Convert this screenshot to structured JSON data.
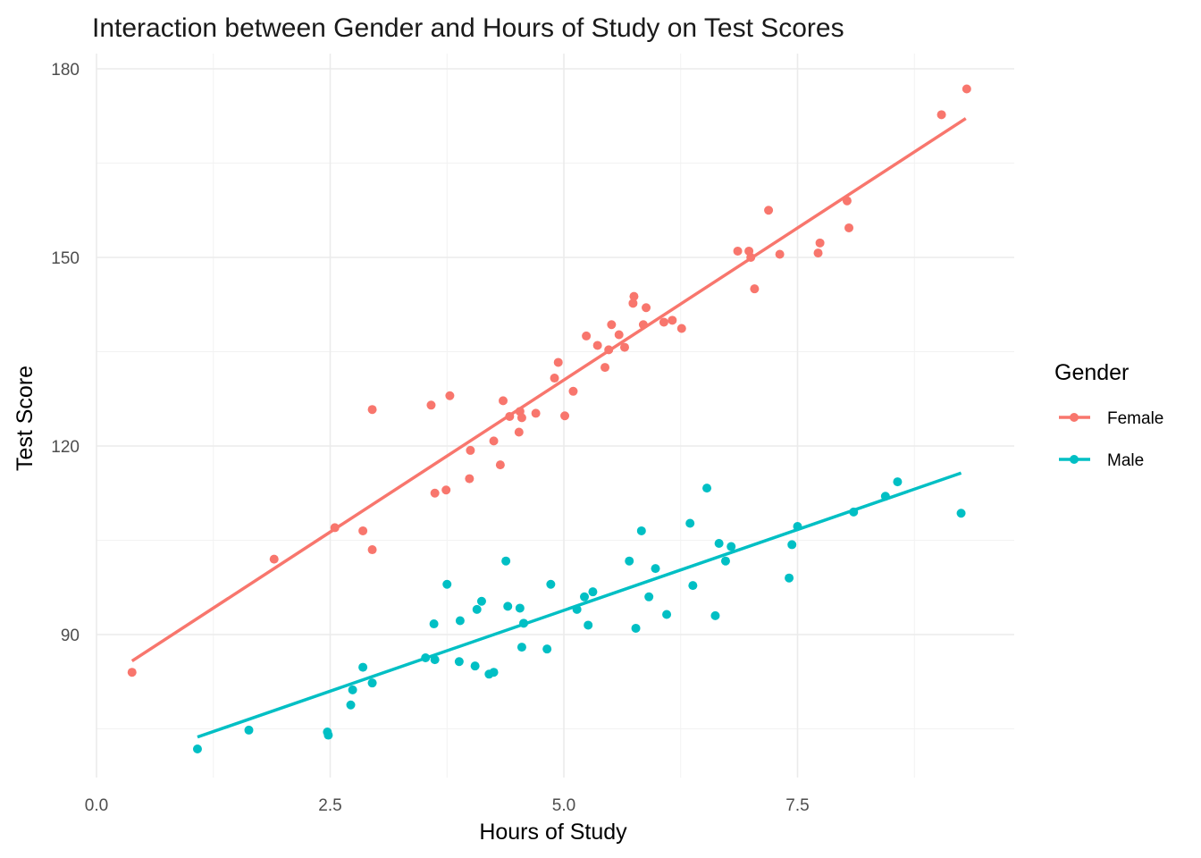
{
  "chart_data": {
    "type": "scatter",
    "title": "Interaction between Gender and Hours of Study on Test Scores",
    "xlabel": "Hours of Study",
    "ylabel": "Test Score",
    "xlim": [
      0,
      9.4
    ],
    "ylim": [
      67,
      182
    ],
    "x_ticks": [
      0,
      2.5,
      5,
      7.5
    ],
    "x_tick_labels": [
      "0.0",
      "2.5",
      "5.0",
      "7.5"
    ],
    "y_ticks": [
      90,
      120,
      150,
      180
    ],
    "y_tick_labels": [
      "90",
      "120",
      "150",
      "180"
    ],
    "grid": true,
    "legend": {
      "title": "Gender",
      "position": "right"
    },
    "series": [
      {
        "name": "Female",
        "color": "#F8766D",
        "fit": {
          "x": [
            0.38,
            9.3
          ],
          "y": [
            85.8,
            172.1
          ]
        },
        "points": [
          [
            0.38,
            84
          ],
          [
            1.9,
            102
          ],
          [
            2.55,
            107
          ],
          [
            2.85,
            106.5
          ],
          [
            2.95,
            103.5
          ],
          [
            2.95,
            125.8
          ],
          [
            3.58,
            126.5
          ],
          [
            3.62,
            112.5
          ],
          [
            3.74,
            113
          ],
          [
            3.78,
            128
          ],
          [
            3.99,
            114.8
          ],
          [
            4.0,
            119.3
          ],
          [
            4.25,
            120.8
          ],
          [
            4.32,
            117
          ],
          [
            4.35,
            127.2
          ],
          [
            4.42,
            124.7
          ],
          [
            4.52,
            122.2
          ],
          [
            4.53,
            125.5
          ],
          [
            4.55,
            124.5
          ],
          [
            4.7,
            125.2
          ],
          [
            4.9,
            130.8
          ],
          [
            4.94,
            133.3
          ],
          [
            5.01,
            124.8
          ],
          [
            5.1,
            128.7
          ],
          [
            5.24,
            137.5
          ],
          [
            5.36,
            136
          ],
          [
            5.44,
            132.5
          ],
          [
            5.48,
            135.3
          ],
          [
            5.51,
            139.3
          ],
          [
            5.59,
            137.7
          ],
          [
            5.65,
            135.7
          ],
          [
            5.74,
            142.7
          ],
          [
            5.75,
            143.8
          ],
          [
            5.85,
            139.3
          ],
          [
            5.88,
            142
          ],
          [
            6.07,
            139.7
          ],
          [
            6.16,
            140
          ],
          [
            6.26,
            138.7
          ],
          [
            6.86,
            151
          ],
          [
            6.98,
            151
          ],
          [
            7.0,
            150
          ],
          [
            7.04,
            145
          ],
          [
            7.19,
            157.5
          ],
          [
            7.31,
            150.5
          ],
          [
            7.72,
            150.7
          ],
          [
            7.74,
            152.3
          ],
          [
            8.03,
            159
          ],
          [
            8.05,
            154.7
          ],
          [
            9.04,
            172.7
          ],
          [
            9.31,
            176.8
          ]
        ]
      },
      {
        "name": "Male",
        "color": "#00BFC4",
        "fit": {
          "x": [
            1.08,
            9.25
          ],
          "y": [
            73.7,
            115.7
          ]
        },
        "points": [
          [
            1.08,
            71.8
          ],
          [
            1.63,
            74.8
          ],
          [
            2.47,
            74.5
          ],
          [
            2.48,
            74
          ],
          [
            2.72,
            78.8
          ],
          [
            2.74,
            81.2
          ],
          [
            2.85,
            84.8
          ],
          [
            2.95,
            82.3
          ],
          [
            3.52,
            86.3
          ],
          [
            3.62,
            86
          ],
          [
            3.61,
            91.7
          ],
          [
            3.75,
            98
          ],
          [
            3.88,
            85.7
          ],
          [
            3.89,
            92.2
          ],
          [
            4.05,
            85
          ],
          [
            4.07,
            94
          ],
          [
            4.12,
            95.3
          ],
          [
            4.2,
            83.7
          ],
          [
            4.25,
            84
          ],
          [
            4.38,
            101.7
          ],
          [
            4.4,
            94.5
          ],
          [
            4.53,
            94.2
          ],
          [
            4.55,
            88
          ],
          [
            4.57,
            91.8
          ],
          [
            4.82,
            87.7
          ],
          [
            4.86,
            98
          ],
          [
            5.14,
            94
          ],
          [
            5.22,
            96
          ],
          [
            5.26,
            91.5
          ],
          [
            5.31,
            96.8
          ],
          [
            5.7,
            101.7
          ],
          [
            5.77,
            91
          ],
          [
            5.83,
            106.5
          ],
          [
            5.91,
            96
          ],
          [
            5.98,
            100.5
          ],
          [
            6.1,
            93.2
          ],
          [
            6.35,
            107.7
          ],
          [
            6.38,
            97.8
          ],
          [
            6.53,
            113.3
          ],
          [
            6.62,
            93
          ],
          [
            6.66,
            104.5
          ],
          [
            6.73,
            101.7
          ],
          [
            6.79,
            104
          ],
          [
            7.41,
            99
          ],
          [
            7.44,
            104.3
          ],
          [
            7.5,
            107.2
          ],
          [
            8.1,
            109.5
          ],
          [
            8.44,
            112
          ],
          [
            8.57,
            114.3
          ],
          [
            9.25,
            109.3
          ]
        ]
      }
    ]
  }
}
